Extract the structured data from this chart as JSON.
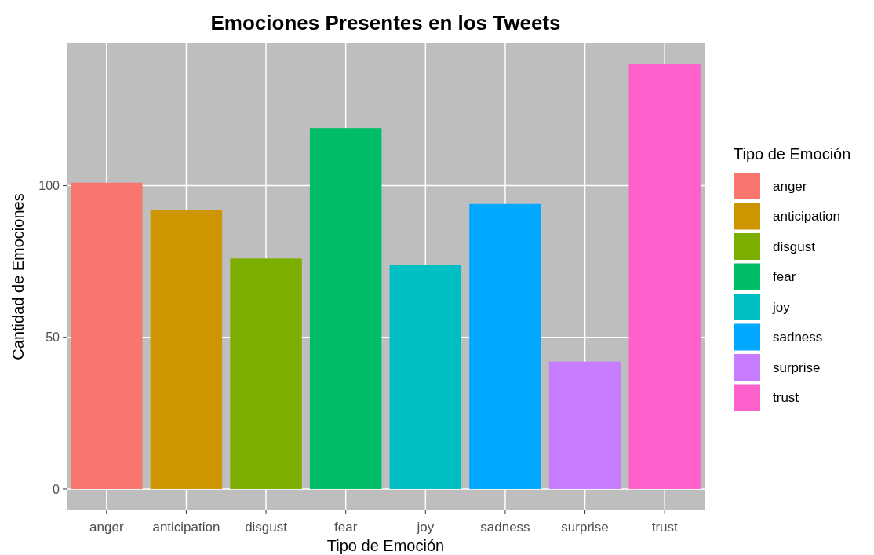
{
  "chart_data": {
    "type": "bar",
    "title": "Emociones Presentes en los Tweets",
    "xlabel": "Tipo de Emoción",
    "ylabel": "Cantidad de Emociones",
    "legend_title": "Tipo de Emoción",
    "categories": [
      "anger",
      "anticipation",
      "disgust",
      "fear",
      "joy",
      "sadness",
      "surprise",
      "trust"
    ],
    "series": [
      {
        "name": "anger",
        "color": "#f8766d",
        "values": [
          101,
          null,
          null,
          null,
          null,
          null,
          null,
          null
        ]
      },
      {
        "name": "anticipation",
        "color": "#cd9600",
        "values": [
          null,
          92,
          null,
          null,
          null,
          null,
          null,
          null
        ]
      },
      {
        "name": "disgust",
        "color": "#7cae00",
        "values": [
          null,
          null,
          76,
          null,
          null,
          null,
          null,
          null
        ]
      },
      {
        "name": "fear",
        "color": "#00be67",
        "values": [
          null,
          null,
          null,
          119,
          null,
          null,
          null,
          null
        ]
      },
      {
        "name": "joy",
        "color": "#00bfc4",
        "values": [
          null,
          null,
          null,
          null,
          74,
          null,
          null,
          null
        ]
      },
      {
        "name": "sadness",
        "color": "#00a9ff",
        "values": [
          null,
          null,
          null,
          null,
          null,
          94,
          null,
          null
        ]
      },
      {
        "name": "surprise",
        "color": "#c77cff",
        "values": [
          null,
          null,
          null,
          null,
          null,
          null,
          42,
          null
        ]
      },
      {
        "name": "trust",
        "color": "#ff61cc",
        "values": [
          null,
          null,
          null,
          null,
          null,
          null,
          null,
          140
        ]
      }
    ],
    "ylim": [
      -7,
      147
    ],
    "yticks": [
      0,
      50,
      100
    ],
    "grid": true,
    "legend": "right"
  }
}
